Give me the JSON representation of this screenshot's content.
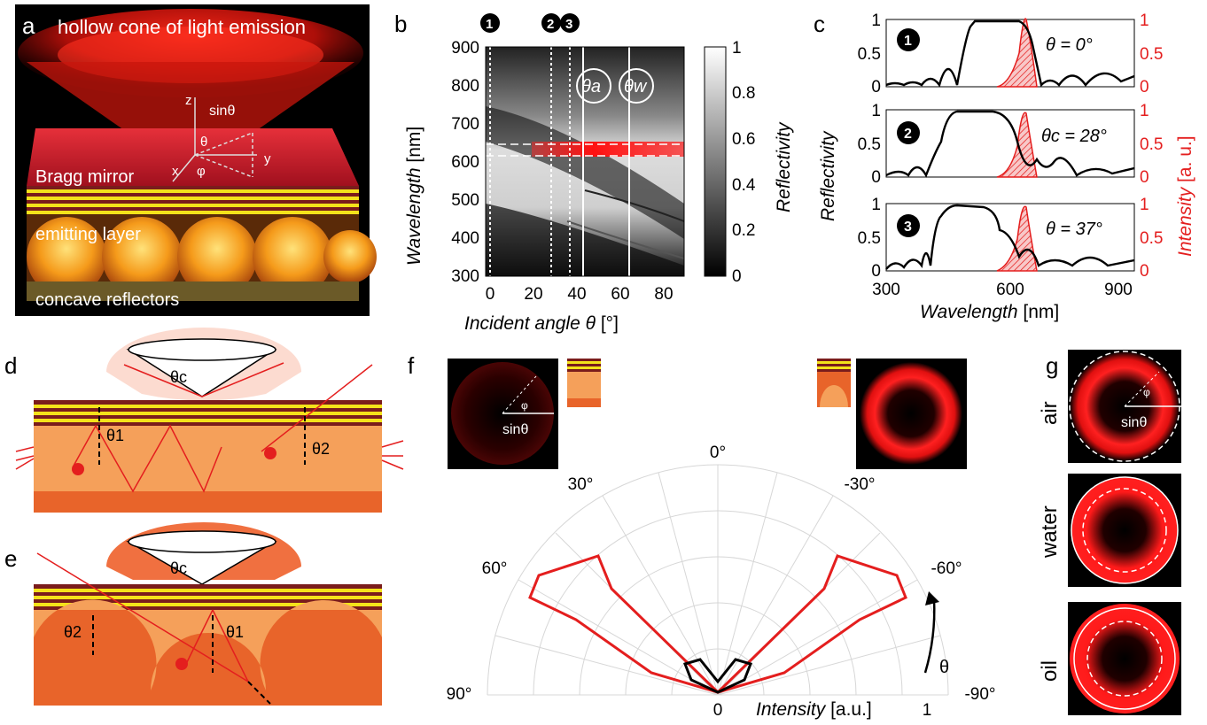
{
  "panels": {
    "a": {
      "letter": "a",
      "title": "hollow cone of light emission",
      "labels": {
        "sin": "sinθ",
        "z": "z",
        "y": "y",
        "x": "x",
        "theta": "θ",
        "phi": "φ",
        "bragg": "Bragg mirror",
        "emitting": "emitting layer",
        "concave": "concave reflectors"
      }
    },
    "b": {
      "letter": "b",
      "ylabel": "Wavelength",
      "yunit": "[nm]",
      "xlabel": "Incident angle θ",
      "xunit": "[°]",
      "cbar_label": "Reflectivity",
      "yticks": [
        "900",
        "800",
        "700",
        "600",
        "500",
        "400",
        "300"
      ],
      "xticks": [
        "0",
        "20",
        "40",
        "60",
        "80"
      ],
      "cbar_ticks": [
        "1",
        "0.8",
        "0.6",
        "0.4",
        "0.2",
        "0"
      ],
      "markers": [
        "1",
        "2",
        "3"
      ],
      "angle_labels": {
        "a": "θa",
        "w": "θw"
      }
    },
    "c": {
      "letter": "c",
      "ylabel_left": "Reflectivity",
      "ylabel_right": "Intensity",
      "ylabel_right_unit": "[a. u.]",
      "xlabel": "Wavelength",
      "xunit": "[nm]",
      "xticks": [
        "300",
        "600",
        "900"
      ],
      "yticks_left": [
        "1",
        "0.5",
        "0"
      ],
      "yticks_right": [
        "1",
        "0.5",
        "0"
      ],
      "rows": [
        {
          "marker": "1",
          "label": "θ = 0°"
        },
        {
          "marker": "2",
          "label": "θc = 28°"
        },
        {
          "marker": "3",
          "label": "θ = 37°"
        }
      ]
    },
    "d": {
      "letter": "d",
      "theta_c": "θc",
      "theta_1": "θ1",
      "theta_2": "θ2"
    },
    "e": {
      "letter": "e",
      "theta_c": "θc",
      "theta_1": "θ1",
      "theta_2": "θ2"
    },
    "f": {
      "letter": "f",
      "sin": "sinθ",
      "phi": "φ",
      "angle_ticks": [
        "0°",
        "30°",
        "-30°",
        "60°",
        "-60°",
        "90°",
        "-90°"
      ],
      "theta": "θ",
      "rticks": [
        "0",
        "1"
      ],
      "intensity": "Intensity",
      "intensity_unit": "[a.u.]"
    },
    "g": {
      "letter": "g",
      "rows": [
        "air",
        "water",
        "oil"
      ],
      "sin": "sinθ",
      "phi": "φ"
    }
  },
  "colors": {
    "red": "#e41e1e",
    "orange": "#f5a05a",
    "darkorange": "#e8642a",
    "yellow": "#f4e21a",
    "maroon": "#7a1c1c"
  }
}
